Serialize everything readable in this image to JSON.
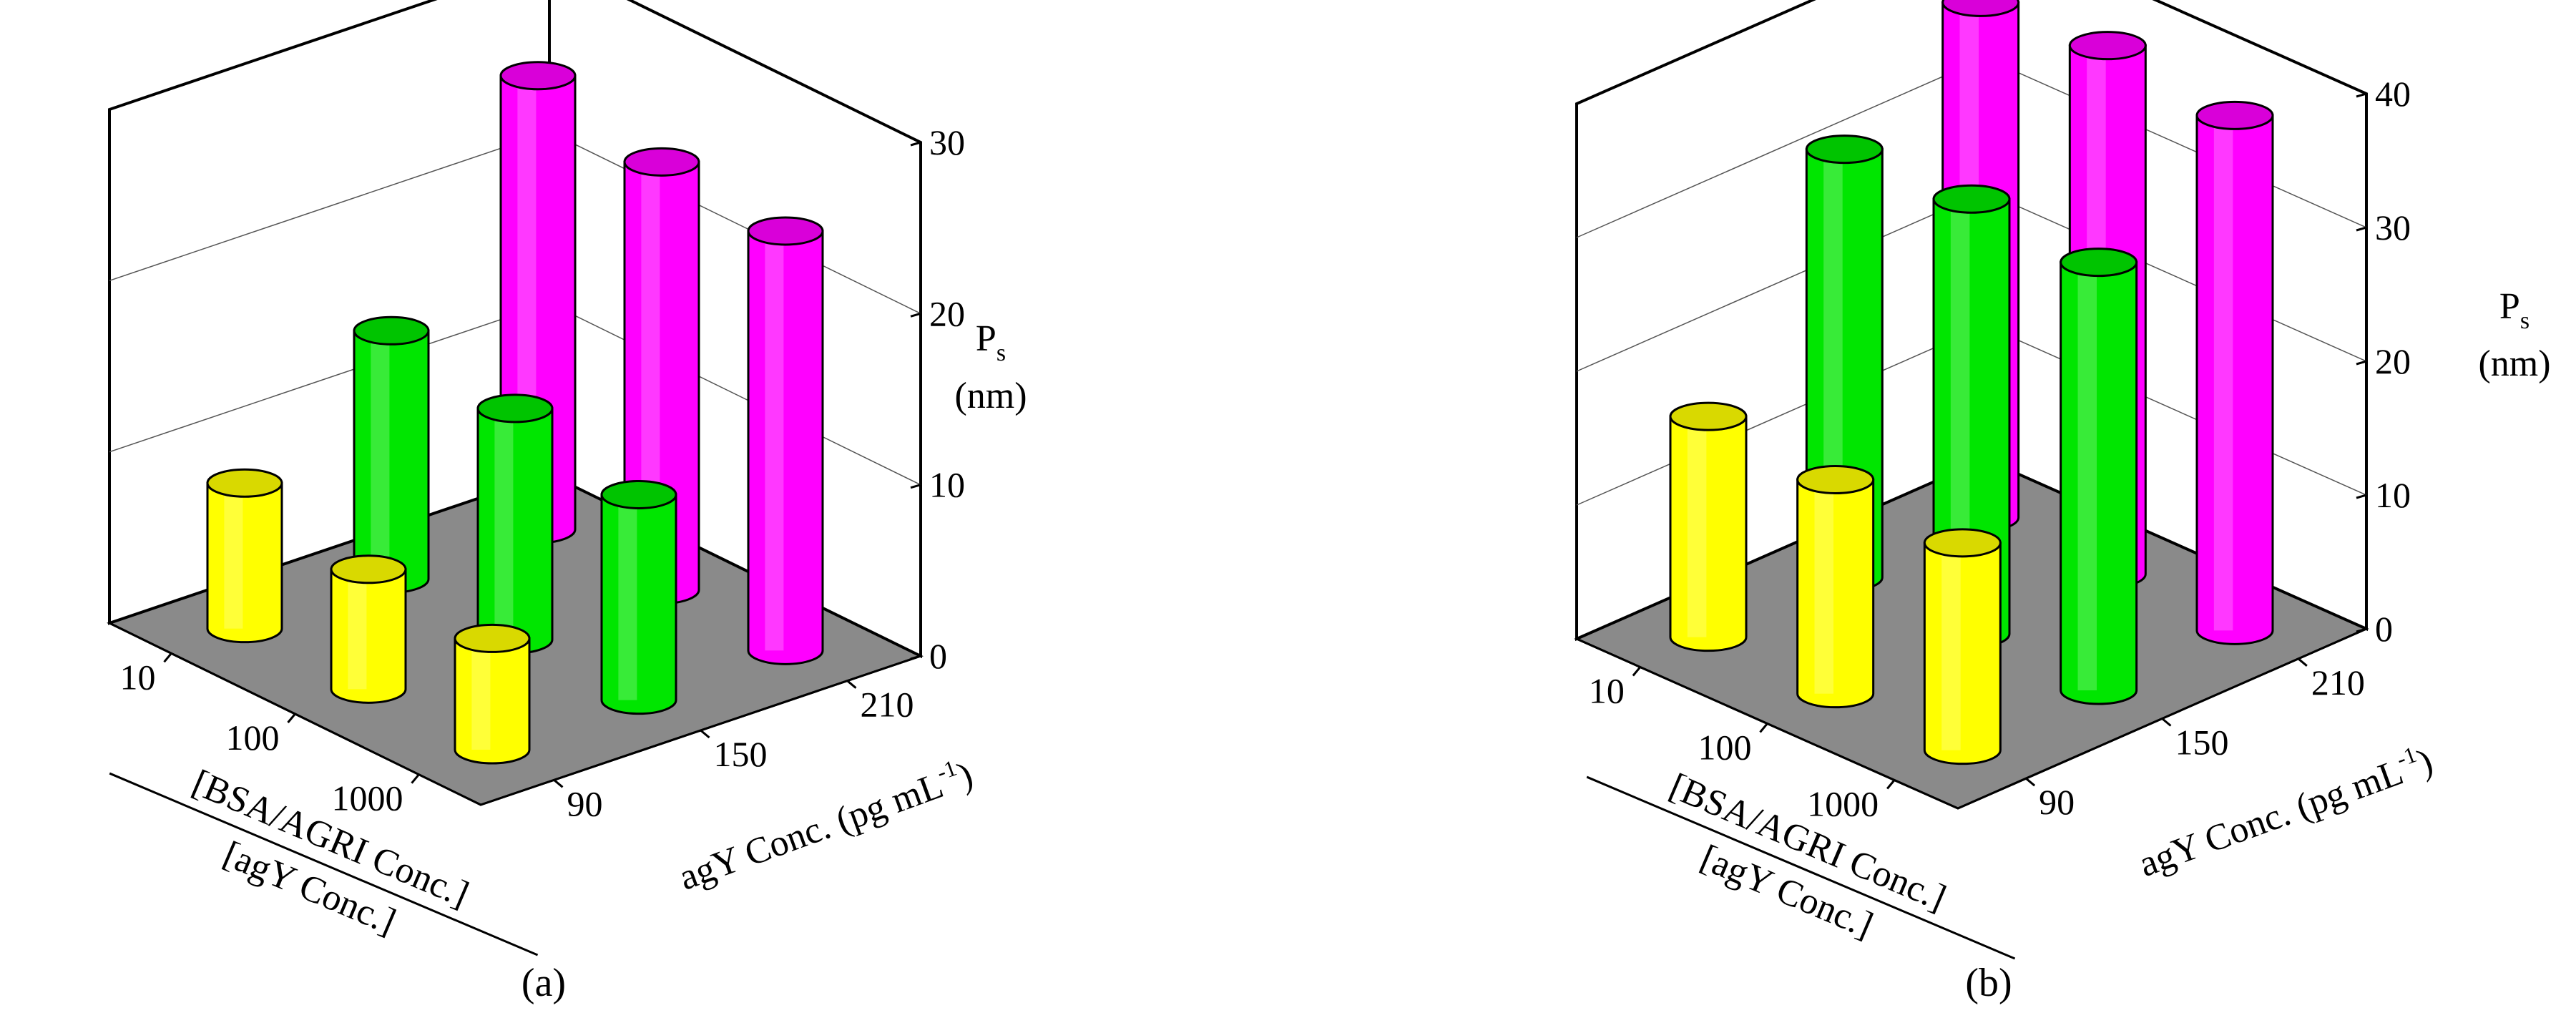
{
  "chart_data": [
    {
      "panel": "a",
      "panel_label": "(a)",
      "type": "bar",
      "subtype": "3d-cylinder",
      "zlabel_main": "P",
      "zlabel_sub": "s",
      "zlabel_unit": "(nm)",
      "xlabel_top": "[BSA/AGRI Conc.]",
      "xlabel_bottom": "[agY Conc.]",
      "ylabel": "agY Conc. (pg mL",
      "ylabel_sup": "-1",
      "ylabel_close": ")",
      "ratio_ticks": [
        "10",
        "100",
        "1000"
      ],
      "agY_ticks": [
        "90",
        "150",
        "210"
      ],
      "z_ticks": [
        "0",
        "10",
        "20",
        "30"
      ],
      "zlim": [
        0,
        30
      ],
      "colors": {
        "90": "#ffff00",
        "150": "#00e600",
        "210": "#ff00ff"
      },
      "values": {
        "90": [
          8.5,
          7.0,
          6.5
        ],
        "150": [
          14.5,
          13.5,
          12.0
        ],
        "210": [
          26.5,
          25.0,
          24.5
        ]
      }
    },
    {
      "panel": "b",
      "panel_label": "(b)",
      "type": "bar",
      "subtype": "3d-cylinder",
      "zlabel_main": "P",
      "zlabel_sub": "s",
      "zlabel_unit": "(nm)",
      "xlabel_top": "[BSA/AGRI Conc.]",
      "xlabel_bottom": "[agY Conc.]",
      "ylabel": "agY Conc. (pg mL",
      "ylabel_sup": "-1",
      "ylabel_close": ")",
      "ratio_ticks": [
        "10",
        "100",
        "1000"
      ],
      "agY_ticks": [
        "90",
        "150",
        "210"
      ],
      "z_ticks": [
        "0",
        "10",
        "20",
        "30",
        "40"
      ],
      "zlim": [
        0,
        40
      ],
      "colors": {
        "90": "#ffff00",
        "150": "#00e600",
        "210": "#ff00ff"
      },
      "values": {
        "90": [
          16.5,
          16.0,
          15.5
        ],
        "150": [
          32.0,
          32.5,
          32.0
        ],
        "210": [
          38.5,
          39.5,
          38.5
        ]
      }
    }
  ]
}
